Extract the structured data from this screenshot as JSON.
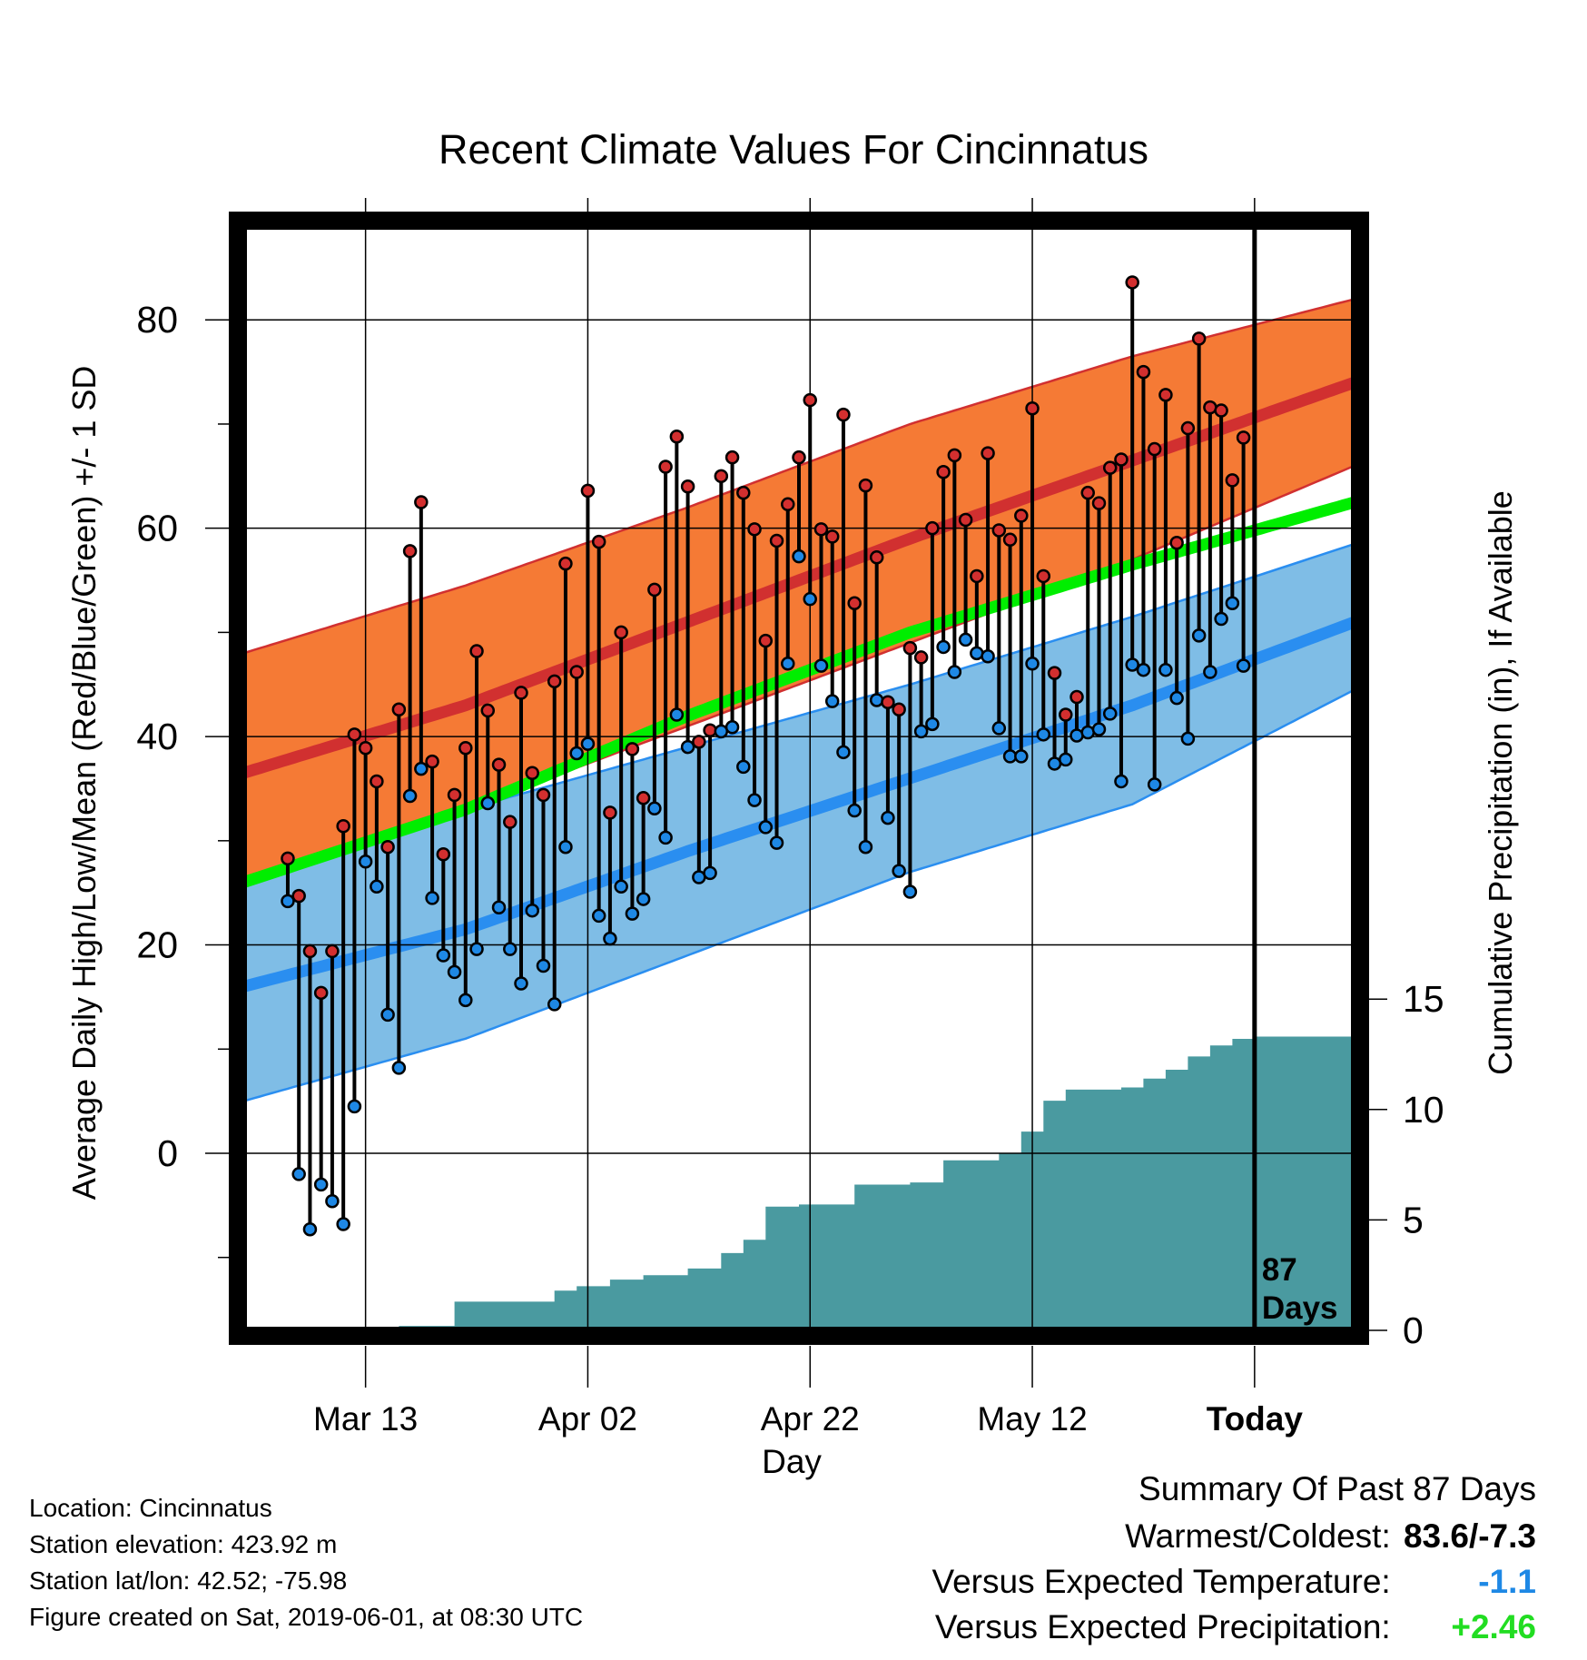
{
  "chart_data": {
    "type": "line",
    "title": "Recent Climate Values For Cincinnatus",
    "xlabel": "Day",
    "ylabel": "Average Daily High/Low/Mean (Red/Blue/Green) +/- 1 SD",
    "y2label": "Cumulative Precipitation (in), If Available",
    "x_tick_labels": [
      "Mar 13",
      "Apr 02",
      "Apr 22",
      "May 12",
      "Today"
    ],
    "x_tick_days": [
      "2019-03-13",
      "2019-04-02",
      "2019-04-22",
      "2019-05-12",
      "2019-06-01"
    ],
    "x_range": [
      "2019-03-02",
      "2019-06-10"
    ],
    "y_ticks": [
      0,
      20,
      40,
      60,
      80
    ],
    "y_range": [
      -17,
      89
    ],
    "y2_ticks": [
      0,
      5,
      10,
      15
    ],
    "y2_range": [
      0,
      50
    ],
    "grid": true,
    "today_marker": {
      "day": "2019-06-01",
      "label_line1": "87",
      "label_line2": "Days"
    },
    "normals": {
      "days": [
        "2019-03-02",
        "2019-03-22",
        "2019-04-11",
        "2019-05-01",
        "2019-05-21",
        "2019-06-10"
      ],
      "high_mean": [
        36.5,
        43,
        51,
        59,
        66.5,
        74
      ],
      "high_upper": [
        48,
        54.5,
        62,
        70,
        76.5,
        82
      ],
      "high_lower": [
        26,
        33,
        41,
        49,
        57,
        66
      ],
      "avg_mean": [
        26,
        33,
        42,
        50,
        56.5,
        62.5
      ],
      "low_mean": [
        16,
        21.5,
        29,
        36,
        43,
        51
      ],
      "low_upper": [
        28,
        33,
        39,
        45,
        51.5,
        58.5
      ],
      "low_lower": [
        5,
        11,
        19,
        27,
        33.5,
        44.5
      ]
    },
    "series": [
      {
        "name": "High",
        "color": "#d32f2f",
        "values": [
          28.3,
          24.7,
          19.4,
          15.4,
          19.4,
          31.4,
          40.2,
          38.9,
          35.7,
          29.4,
          42.6,
          57.8,
          62.5,
          37.6,
          28.7,
          34.4,
          38.9,
          48.2,
          42.5,
          37.3,
          31.8,
          44.2,
          36.5,
          34.4,
          45.3,
          56.6,
          46.2,
          63.6,
          58.7,
          32.7,
          50.0,
          38.8,
          34.1,
          54.1,
          65.9,
          68.8,
          64.0,
          39.5,
          40.6,
          65.0,
          66.8,
          63.4,
          59.9,
          49.2,
          58.8,
          62.3,
          66.8,
          72.3,
          59.9,
          59.2,
          70.9,
          52.8,
          64.1,
          57.2,
          43.3,
          42.6,
          48.5,
          47.6,
          60.0,
          65.4,
          67.0,
          60.8,
          55.4,
          67.2,
          59.8,
          58.9,
          61.2,
          71.5,
          55.4,
          46.1,
          42.1,
          43.8,
          63.4,
          62.4,
          65.8,
          66.6,
          83.6,
          75.0,
          67.6,
          72.8,
          58.6,
          69.6,
          78.2,
          71.6,
          71.3,
          64.6,
          68.7
        ]
      },
      {
        "name": "Low",
        "color": "#1e88e5",
        "values": [
          24.2,
          -2.0,
          -7.3,
          -3.0,
          -4.6,
          -6.8,
          4.5,
          28.0,
          25.6,
          13.3,
          8.2,
          34.3,
          36.9,
          24.5,
          19.0,
          17.4,
          14.7,
          19.6,
          33.6,
          23.6,
          19.6,
          16.3,
          23.3,
          18.0,
          14.3,
          29.4,
          38.4,
          39.3,
          22.8,
          20.6,
          25.6,
          23.0,
          24.4,
          33.1,
          30.3,
          42.1,
          39.0,
          26.5,
          26.9,
          40.5,
          40.9,
          37.1,
          33.9,
          31.3,
          29.8,
          47.0,
          57.3,
          53.2,
          46.8,
          43.4,
          38.5,
          32.9,
          29.4,
          43.5,
          32.2,
          27.1,
          25.1,
          40.5,
          41.2,
          48.6,
          46.2,
          49.3,
          48.0,
          47.7,
          40.8,
          38.1,
          38.1,
          47.0,
          40.2,
          37.4,
          37.8,
          40.1,
          40.4,
          40.7,
          42.2,
          35.7,
          46.9,
          46.4,
          35.4,
          46.4,
          43.7,
          39.8,
          49.7,
          46.2,
          51.3,
          52.8,
          46.8
        ]
      },
      {
        "name": "Cumulative Precipitation",
        "color": "#4a9aa0",
        "days": [
          "2019-03-02",
          "2019-03-09",
          "2019-03-16",
          "2019-03-19",
          "2019-03-21",
          "2019-03-30",
          "2019-04-01",
          "2019-04-04",
          "2019-04-07",
          "2019-04-11",
          "2019-04-14",
          "2019-04-16",
          "2019-04-18",
          "2019-04-21",
          "2019-04-26",
          "2019-05-01",
          "2019-05-04",
          "2019-05-09",
          "2019-05-11",
          "2019-05-13",
          "2019-05-15",
          "2019-05-20",
          "2019-05-22",
          "2019-05-24",
          "2019-05-26",
          "2019-05-28",
          "2019-05-30",
          "2019-06-01",
          "2019-06-10"
        ],
        "values": [
          0.0,
          0.0,
          0.2,
          0.2,
          1.3,
          1.8,
          2.0,
          2.3,
          2.5,
          2.8,
          3.5,
          4.1,
          5.6,
          5.7,
          6.6,
          6.7,
          7.7,
          8.0,
          9.0,
          10.4,
          10.9,
          11.0,
          11.4,
          11.8,
          12.4,
          12.9,
          13.2,
          13.3,
          13.3
        ]
      }
    ]
  },
  "footer": {
    "location": "Location: Cincinnatus",
    "elevation": "Station elevation: 423.92 m",
    "latlon": "Station lat/lon: 42.52; -75.98",
    "created": "Figure created on Sat, 2019-06-01, at 08:30 UTC"
  },
  "summary": {
    "heading": "Summary Of Past 87 Days",
    "warm_cold_label": "Warmest/Coldest:",
    "warm_cold_value": "83.6/-7.3",
    "temp_label": "Versus Expected Temperature:",
    "temp_value": "-1.1",
    "temp_color": "#1e88e5",
    "precip_label": "Versus Expected Precipitation:",
    "precip_value": "+2.46",
    "precip_color": "#22dd22"
  },
  "colors": {
    "high_band": "#f57a35",
    "high_line": "#d13030",
    "avg_line": "#00ee00",
    "low_band": "#7fbde6",
    "low_line": "#2a8ef0",
    "precip_fill": "#4a9aa0"
  }
}
